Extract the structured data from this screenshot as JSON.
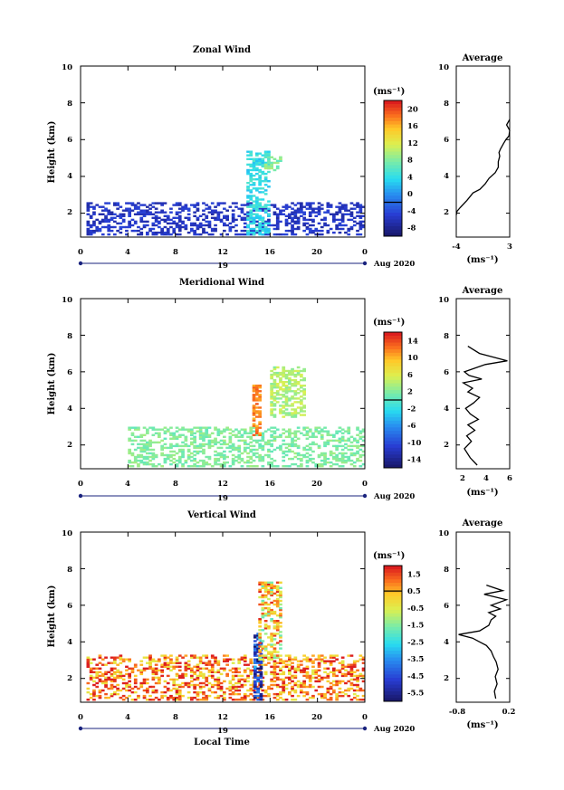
{
  "figure": {
    "panels": [
      {
        "id": "zonal",
        "title": "Zonal Wind",
        "ylabel": "Height (km)",
        "xticks": [
          "0",
          "4",
          "8",
          "12",
          "16",
          "20",
          "0"
        ],
        "yticks": [
          "2",
          "4",
          "6",
          "8",
          "10"
        ],
        "date_day": "19",
        "date_label": "Aug 2020",
        "cbar_unit": "(ms⁻¹)",
        "cbar_ticks": [
          "-8",
          "-4",
          "0",
          "4",
          "8",
          "12",
          "16",
          "20"
        ],
        "avg_title": "Average",
        "avg_yticks": [
          "2",
          "4",
          "6",
          "8",
          "10"
        ],
        "avg_xticks": [
          "-4",
          "3"
        ],
        "avg_unit": "(ms⁻¹)"
      },
      {
        "id": "meridional",
        "title": "Meridional Wind",
        "ylabel": "Height (km)",
        "xticks": [
          "0",
          "4",
          "8",
          "12",
          "16",
          "20",
          "0"
        ],
        "yticks": [
          "2",
          "4",
          "6",
          "8",
          "10"
        ],
        "date_day": "19",
        "date_label": "Aug 2020",
        "cbar_unit": "(ms⁻¹)",
        "cbar_ticks": [
          "-14",
          "-10",
          "-6",
          "-2",
          "2",
          "6",
          "10",
          "14"
        ],
        "avg_title": "Average",
        "avg_yticks": [
          "2",
          "4",
          "6",
          "8",
          "10"
        ],
        "avg_xticks": [
          "2",
          "4",
          "6"
        ],
        "avg_unit": "(ms⁻¹)"
      },
      {
        "id": "vertical",
        "title": "Vertical Wind",
        "ylabel": "Height (km)",
        "xlabel": "Local Time",
        "xticks": [
          "0",
          "4",
          "8",
          "12",
          "16",
          "20",
          "0"
        ],
        "yticks": [
          "2",
          "4",
          "6",
          "8",
          "10"
        ],
        "date_day": "19",
        "date_label": "Aug 2020",
        "cbar_unit": "(ms⁻¹)",
        "cbar_ticks": [
          "-5.5",
          "-4.5",
          "-3.5",
          "-2.5",
          "-1.5",
          "-0.5",
          "0.5",
          "1.5"
        ],
        "avg_title": "Average",
        "avg_yticks": [
          "2",
          "4",
          "6",
          "8",
          "10"
        ],
        "avg_xticks": [
          "-0.8",
          "0.2"
        ],
        "avg_unit": "(ms⁻¹)"
      }
    ]
  },
  "chart_data": [
    {
      "type": "heatmap",
      "title": "Zonal Wind",
      "ylabel": "Height (km)",
      "x_unit": "Local Time (h)",
      "xlim": [
        0,
        24
      ],
      "ylim": [
        0.7,
        10
      ],
      "color_range": [
        -10,
        22
      ],
      "features": [
        {
          "time_range": [
            0.5,
            24
          ],
          "height_range": [
            0.8,
            2.6
          ],
          "approx_value": -6
        },
        {
          "time_range": [
            14,
            16
          ],
          "height_range": [
            0.8,
            5.3
          ],
          "approx_value": 4
        },
        {
          "time_range": [
            15.5,
            17
          ],
          "height_range": [
            4.3,
            5.0
          ],
          "approx_value": 8
        }
      ]
    },
    {
      "type": "line",
      "title": "Average",
      "xlim": [
        -4,
        3
      ],
      "ylim": [
        0.7,
        10
      ],
      "x": [
        -4,
        -3.9,
        -3.5,
        -2.6,
        -1.8,
        -0.9,
        -0.2,
        0.3,
        1.1,
        1.5,
        1.5,
        1.7,
        1.6,
        1.8,
        2.2,
        2.5,
        2.9,
        3.0,
        2.6,
        3.2
      ],
      "y": [
        1.9,
        2.1,
        2.3,
        2.7,
        3.1,
        3.3,
        3.6,
        3.9,
        4.2,
        4.5,
        4.8,
        5.1,
        5.3,
        5.5,
        5.8,
        6.0,
        6.2,
        6.5,
        6.8,
        7.1
      ]
    },
    {
      "type": "heatmap",
      "title": "Meridional Wind",
      "ylabel": "Height (km)",
      "x_unit": "Local Time (h)",
      "xlim": [
        0,
        24
      ],
      "ylim": [
        0.7,
        10
      ],
      "color_range": [
        -16,
        16
      ],
      "features": [
        {
          "time_range": [
            4,
            24
          ],
          "height_range": [
            0.8,
            3.0
          ],
          "approx_value": 2
        },
        {
          "time_range": [
            14.5,
            15.1
          ],
          "height_range": [
            2.5,
            5.2
          ],
          "approx_value": 12
        },
        {
          "time_range": [
            16,
            19
          ],
          "height_range": [
            3.5,
            6.2
          ],
          "approx_value": 4
        }
      ]
    },
    {
      "type": "line",
      "title": "Average",
      "xlim": [
        1.4,
        6
      ],
      "ylim": [
        0.7,
        10
      ],
      "x": [
        3.2,
        2.6,
        2.1,
        2.7,
        2.3,
        3.0,
        2.4,
        3.3,
        2.6,
        2.2,
        2.9,
        3.4,
        2.4,
        2.8,
        2.0,
        3.6,
        2.5,
        2.1,
        3.9,
        5.8,
        3.4,
        2.4
      ],
      "y": [
        0.9,
        1.3,
        1.8,
        2.2,
        2.5,
        2.8,
        3.1,
        3.4,
        3.7,
        4.0,
        4.3,
        4.6,
        4.9,
        5.1,
        5.4,
        5.6,
        5.8,
        6.0,
        6.4,
        6.6,
        7.0,
        7.4
      ]
    },
    {
      "type": "heatmap",
      "title": "Vertical Wind",
      "ylabel": "Height (km)",
      "xlabel": "Local Time",
      "x_unit": "Local Time (h)",
      "xlim": [
        0,
        24
      ],
      "ylim": [
        0.7,
        10
      ],
      "color_range": [
        -6,
        2
      ],
      "features": [
        {
          "time_range": [
            0.5,
            24
          ],
          "height_range": [
            0.8,
            3.3
          ],
          "approx_value": 1
        },
        {
          "time_range": [
            14.6,
            15.2
          ],
          "height_range": [
            0.8,
            4.5
          ],
          "approx_value": -5
        },
        {
          "time_range": [
            15,
            17
          ],
          "height_range": [
            3.0,
            7.2
          ],
          "approx_value": 0
        }
      ]
    },
    {
      "type": "line",
      "title": "Average",
      "xlim": [
        -0.9,
        0.25
      ],
      "ylim": [
        0.7,
        10
      ],
      "x": [
        -0.05,
        -0.08,
        -0.02,
        -0.06,
        0.0,
        -0.04,
        -0.1,
        -0.15,
        -0.25,
        -0.4,
        -0.55,
        -0.85,
        -0.4,
        -0.2,
        -0.15,
        -0.05,
        -0.2,
        0.05,
        -0.15,
        0.18,
        -0.3,
        0.1,
        -0.25
      ],
      "y": [
        0.9,
        1.3,
        1.7,
        2.1,
        2.5,
        2.9,
        3.2,
        3.5,
        3.8,
        4.0,
        4.2,
        4.4,
        4.6,
        4.9,
        5.2,
        5.4,
        5.6,
        5.8,
        6.0,
        6.3,
        6.6,
        6.8,
        7.1
      ]
    }
  ]
}
